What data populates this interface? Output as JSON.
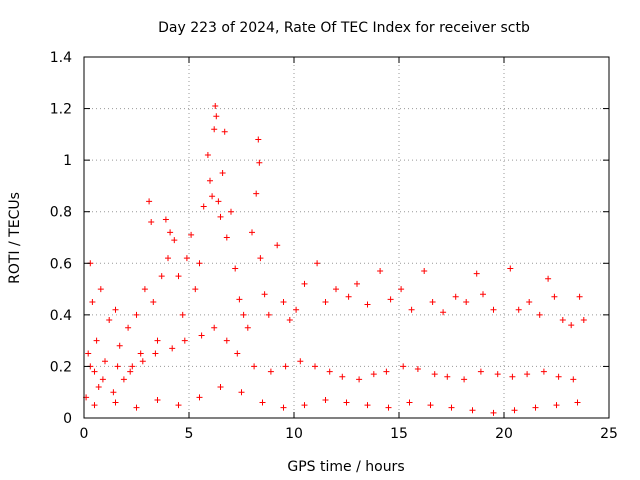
{
  "chart_data": {
    "type": "scatter",
    "title": "Day 223 of 2024, Rate Of TEC Index for receiver sctb",
    "xlabel": "GPS time / hours",
    "ylabel": "ROTI / TECUs",
    "xlim": [
      0,
      25
    ],
    "ylim": [
      0,
      1.4
    ],
    "xticks": [
      0,
      5,
      10,
      15,
      20,
      25
    ],
    "yticks": [
      0,
      0.2,
      0.4,
      0.6,
      0.8,
      1,
      1.2,
      1.4
    ],
    "xtick_labels": [
      "0",
      "5",
      "10",
      "15",
      "20",
      "25"
    ],
    "ytick_labels": [
      "0",
      "0.2",
      "0.4",
      "0.6",
      "0.8",
      "1",
      "1.2",
      "1.4"
    ],
    "grid": true,
    "marker": "+",
    "color": "#ff0000",
    "series": [
      {
        "points": [
          [
            0.1,
            0.08
          ],
          [
            0.2,
            0.25
          ],
          [
            0.3,
            0.6
          ],
          [
            0.4,
            0.45
          ],
          [
            0.5,
            0.18
          ],
          [
            0.6,
            0.3
          ],
          [
            0.7,
            0.12
          ],
          [
            0.8,
            0.5
          ],
          [
            1.0,
            0.22
          ],
          [
            1.2,
            0.38
          ],
          [
            1.4,
            0.1
          ],
          [
            1.5,
            0.42
          ],
          [
            1.7,
            0.28
          ],
          [
            1.9,
            0.15
          ],
          [
            2.1,
            0.35
          ],
          [
            2.3,
            0.2
          ],
          [
            2.5,
            0.4
          ],
          [
            2.7,
            0.25
          ],
          [
            2.9,
            0.5
          ],
          [
            3.1,
            0.84
          ],
          [
            3.2,
            0.76
          ],
          [
            3.3,
            0.45
          ],
          [
            3.5,
            0.3
          ],
          [
            3.7,
            0.55
          ],
          [
            3.9,
            0.77
          ],
          [
            4.0,
            0.62
          ],
          [
            4.1,
            0.72
          ],
          [
            4.3,
            0.69
          ],
          [
            4.5,
            0.55
          ],
          [
            4.7,
            0.4
          ],
          [
            4.9,
            0.62
          ],
          [
            5.1,
            0.71
          ],
          [
            5.3,
            0.5
          ],
          [
            5.5,
            0.6
          ],
          [
            5.7,
            0.82
          ],
          [
            5.9,
            1.02
          ],
          [
            6.0,
            0.92
          ],
          [
            6.1,
            0.86
          ],
          [
            6.2,
            1.12
          ],
          [
            6.25,
            1.21
          ],
          [
            6.3,
            1.17
          ],
          [
            6.4,
            0.84
          ],
          [
            6.5,
            0.78
          ],
          [
            6.6,
            0.95
          ],
          [
            6.7,
            1.11
          ],
          [
            6.8,
            0.7
          ],
          [
            7.0,
            0.8
          ],
          [
            7.2,
            0.58
          ],
          [
            7.4,
            0.46
          ],
          [
            7.6,
            0.4
          ],
          [
            7.8,
            0.35
          ],
          [
            8.0,
            0.72
          ],
          [
            8.2,
            0.87
          ],
          [
            8.3,
            1.08
          ],
          [
            8.35,
            0.99
          ],
          [
            8.4,
            0.62
          ],
          [
            8.6,
            0.48
          ],
          [
            8.8,
            0.4
          ],
          [
            9.2,
            0.67
          ],
          [
            9.5,
            0.45
          ],
          [
            9.8,
            0.38
          ],
          [
            10.1,
            0.42
          ],
          [
            10.5,
            0.52
          ],
          [
            11.1,
            0.6
          ],
          [
            11.5,
            0.45
          ],
          [
            12.0,
            0.5
          ],
          [
            12.6,
            0.47
          ],
          [
            13.0,
            0.52
          ],
          [
            13.5,
            0.44
          ],
          [
            14.1,
            0.57
          ],
          [
            14.6,
            0.46
          ],
          [
            15.1,
            0.5
          ],
          [
            15.6,
            0.42
          ],
          [
            16.2,
            0.57
          ],
          [
            16.6,
            0.45
          ],
          [
            17.1,
            0.41
          ],
          [
            17.7,
            0.47
          ],
          [
            18.2,
            0.45
          ],
          [
            18.7,
            0.56
          ],
          [
            19.0,
            0.48
          ],
          [
            19.5,
            0.42
          ],
          [
            20.3,
            0.58
          ],
          [
            20.7,
            0.42
          ],
          [
            21.2,
            0.45
          ],
          [
            21.7,
            0.4
          ],
          [
            22.1,
            0.54
          ],
          [
            22.4,
            0.47
          ],
          [
            22.8,
            0.38
          ],
          [
            23.2,
            0.36
          ],
          [
            23.6,
            0.47
          ],
          [
            23.8,
            0.38
          ],
          [
            0.5,
            0.05
          ],
          [
            1.5,
            0.06
          ],
          [
            2.5,
            0.04
          ],
          [
            3.5,
            0.07
          ],
          [
            4.5,
            0.05
          ],
          [
            5.5,
            0.08
          ],
          [
            6.5,
            0.12
          ],
          [
            7.5,
            0.1
          ],
          [
            8.5,
            0.06
          ],
          [
            9.5,
            0.04
          ],
          [
            10.5,
            0.05
          ],
          [
            11.5,
            0.07
          ],
          [
            12.5,
            0.06
          ],
          [
            13.5,
            0.05
          ],
          [
            14.5,
            0.04
          ],
          [
            15.5,
            0.06
          ],
          [
            16.5,
            0.05
          ],
          [
            17.5,
            0.04
          ],
          [
            18.5,
            0.03
          ],
          [
            19.5,
            0.02
          ],
          [
            20.5,
            0.03
          ],
          [
            21.5,
            0.04
          ],
          [
            22.5,
            0.05
          ],
          [
            23.5,
            0.06
          ],
          [
            0.3,
            0.2
          ],
          [
            0.9,
            0.15
          ],
          [
            1.6,
            0.2
          ],
          [
            2.2,
            0.18
          ],
          [
            2.8,
            0.22
          ],
          [
            3.4,
            0.25
          ],
          [
            4.2,
            0.27
          ],
          [
            4.8,
            0.3
          ],
          [
            5.6,
            0.32
          ],
          [
            6.2,
            0.35
          ],
          [
            6.8,
            0.3
          ],
          [
            7.3,
            0.25
          ],
          [
            8.1,
            0.2
          ],
          [
            8.9,
            0.18
          ],
          [
            9.6,
            0.2
          ],
          [
            10.3,
            0.22
          ],
          [
            11.0,
            0.2
          ],
          [
            11.7,
            0.18
          ],
          [
            12.3,
            0.16
          ],
          [
            13.1,
            0.15
          ],
          [
            13.8,
            0.17
          ],
          [
            14.4,
            0.18
          ],
          [
            15.2,
            0.2
          ],
          [
            15.9,
            0.19
          ],
          [
            16.7,
            0.17
          ],
          [
            17.3,
            0.16
          ],
          [
            18.1,
            0.15
          ],
          [
            18.9,
            0.18
          ],
          [
            19.7,
            0.17
          ],
          [
            20.4,
            0.16
          ],
          [
            21.1,
            0.17
          ],
          [
            21.9,
            0.18
          ],
          [
            22.6,
            0.16
          ],
          [
            23.3,
            0.15
          ]
        ]
      }
    ]
  }
}
